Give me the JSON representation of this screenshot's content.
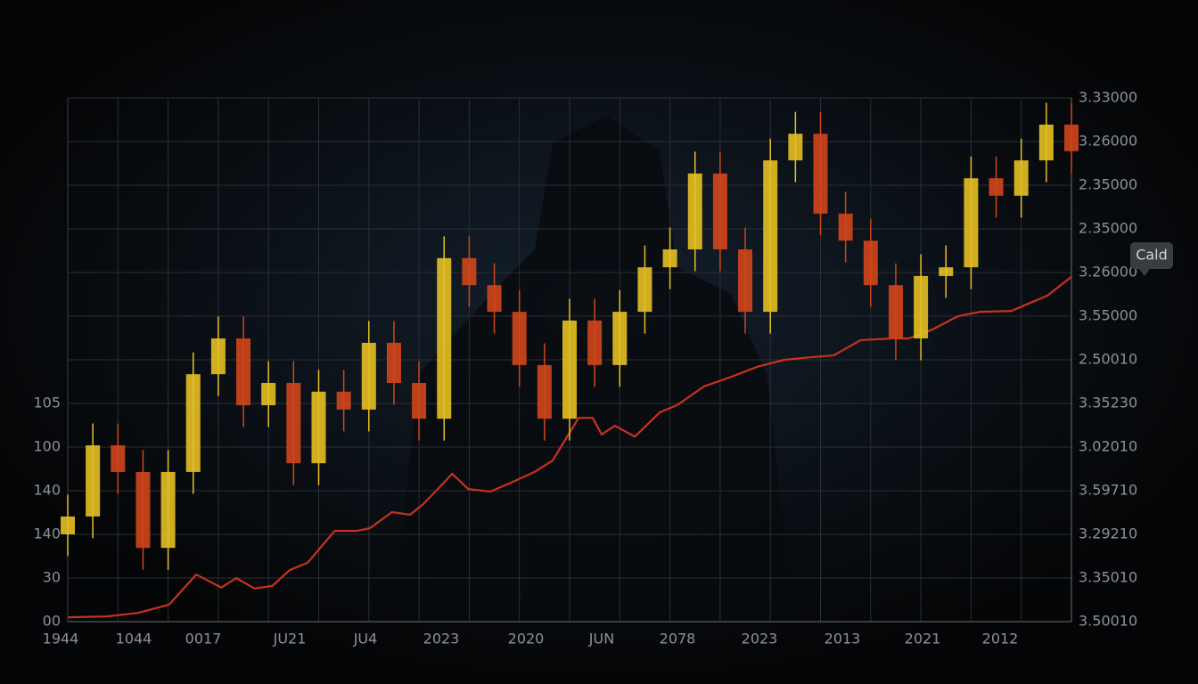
{
  "chart_data": {
    "type": "candlestick",
    "left_axis_labels": [
      "105",
      "100",
      "140",
      "140",
      "30",
      "00"
    ],
    "right_axis_labels": [
      "3.33000",
      "3.26000",
      "2.35000",
      "2.35000",
      "3.26000",
      "3.55000",
      "2.50010",
      "3.35230",
      "3.02010",
      "3.59710",
      "3.29210",
      "3.35010",
      "3.50010"
    ],
    "bottom_axis_labels": [
      "1944",
      "1044",
      "0017",
      "JU21",
      "JU4",
      "2023",
      "2020",
      "JUN",
      "2078",
      "2023",
      "2013",
      "2021",
      "2012"
    ],
    "tooltip": "Cald",
    "xlim": [
      0,
      100
    ],
    "ylim": [
      0,
      120
    ],
    "grid": true,
    "candles": {
      "up_color": "#e6c023",
      "down_color": "#d0461b",
      "x": [
        0,
        2.5,
        5,
        7.5,
        10,
        12.5,
        15,
        17.5,
        20,
        22.5,
        25,
        27.5,
        30,
        32.5,
        35,
        37.5,
        40,
        42.5,
        45,
        47.5,
        50,
        52.5,
        55,
        57.5,
        60,
        62.5,
        65,
        67.5,
        70,
        72.5,
        75,
        77.5,
        80,
        82.5,
        85,
        87.5,
        90,
        92.5,
        95,
        97.5,
        100
      ],
      "open": [
        20.0,
        24.1,
        40.4,
        34.3,
        16.9,
        34.3,
        56.7,
        64.9,
        49.6,
        54.7,
        36.3,
        52.7,
        48.6,
        63.9,
        54.7,
        46.5,
        83.3,
        77.1,
        71.0,
        58.8,
        46.5,
        69.0,
        58.8,
        71.0,
        81.2,
        85.3,
        102.7,
        85.3,
        71.0,
        105.7,
        111.8,
        93.5,
        87.3,
        77.1,
        64.9,
        79.2,
        81.2,
        101.6,
        97.6,
        105.7,
        113.9
      ],
      "high": [
        29.1,
        45.4,
        45.4,
        39.3,
        39.3,
        61.7,
        69.9,
        69.9,
        59.7,
        59.7,
        57.7,
        57.7,
        68.9,
        68.9,
        59.7,
        88.3,
        88.3,
        82.1,
        76.0,
        63.8,
        74.0,
        74.0,
        76.0,
        86.2,
        90.3,
        107.7,
        107.7,
        90.3,
        110.7,
        116.8,
        116.8,
        98.5,
        92.3,
        82.1,
        84.2,
        86.2,
        106.6,
        106.6,
        110.7,
        118.9,
        118.9
      ],
      "low": [
        15.0,
        19.1,
        29.3,
        11.9,
        11.9,
        29.3,
        51.7,
        44.6,
        44.6,
        31.3,
        31.3,
        43.6,
        43.6,
        49.7,
        41.5,
        41.5,
        72.1,
        66.0,
        53.8,
        41.5,
        41.5,
        53.8,
        53.8,
        66.0,
        76.2,
        80.3,
        80.3,
        66.0,
        66.0,
        100.7,
        88.5,
        82.3,
        72.1,
        59.9,
        59.9,
        74.2,
        76.2,
        92.6,
        92.6,
        100.7,
        102.8
      ],
      "close": [
        24.1,
        40.4,
        34.3,
        16.9,
        34.3,
        56.7,
        64.9,
        49.6,
        54.7,
        36.3,
        52.7,
        48.6,
        63.9,
        54.7,
        46.5,
        83.3,
        77.1,
        71.0,
        58.8,
        46.5,
        69.0,
        58.8,
        71.0,
        81.2,
        85.3,
        102.7,
        85.3,
        71.0,
        105.7,
        111.8,
        93.5,
        87.3,
        77.1,
        64.9,
        79.2,
        81.2,
        101.6,
        97.6,
        105.7,
        113.9,
        107.8
      ]
    },
    "line": {
      "color": "#c8321e",
      "x": [
        0,
        3.9,
        7.0,
        10.1,
        12.8,
        15.3,
        16.8,
        18.6,
        20.4,
        22.1,
        23.9,
        26.6,
        28.8,
        30.1,
        32.3,
        34.1,
        35.4,
        36.8,
        38.3,
        39.9,
        42.1,
        44.3,
        46.5,
        48.3,
        50.9,
        52.3,
        53.2,
        54.5,
        56.5,
        59.0,
        60.7,
        63.4,
        66.1,
        68.7,
        71.4,
        74.1,
        76.3,
        79.0,
        82.1,
        83.8,
        86.1,
        88.7,
        90.9,
        94.0,
        97.6,
        100
      ],
      "values": [
        1.0,
        1.2,
        2.0,
        3.9,
        10.8,
        7.8,
        10.0,
        7.6,
        8.2,
        11.8,
        13.5,
        20.8,
        20.8,
        21.4,
        25.1,
        24.5,
        26.9,
        30.2,
        33.9,
        30.4,
        29.8,
        32.0,
        34.3,
        36.9,
        46.7,
        46.7,
        42.9,
        44.9,
        42.4,
        48.0,
        49.6,
        53.9,
        56.1,
        58.4,
        60.0,
        60.6,
        61.0,
        64.5,
        64.9,
        64.9,
        66.9,
        70.0,
        71.0,
        71.2,
        74.7,
        79.0
      ]
    }
  }
}
